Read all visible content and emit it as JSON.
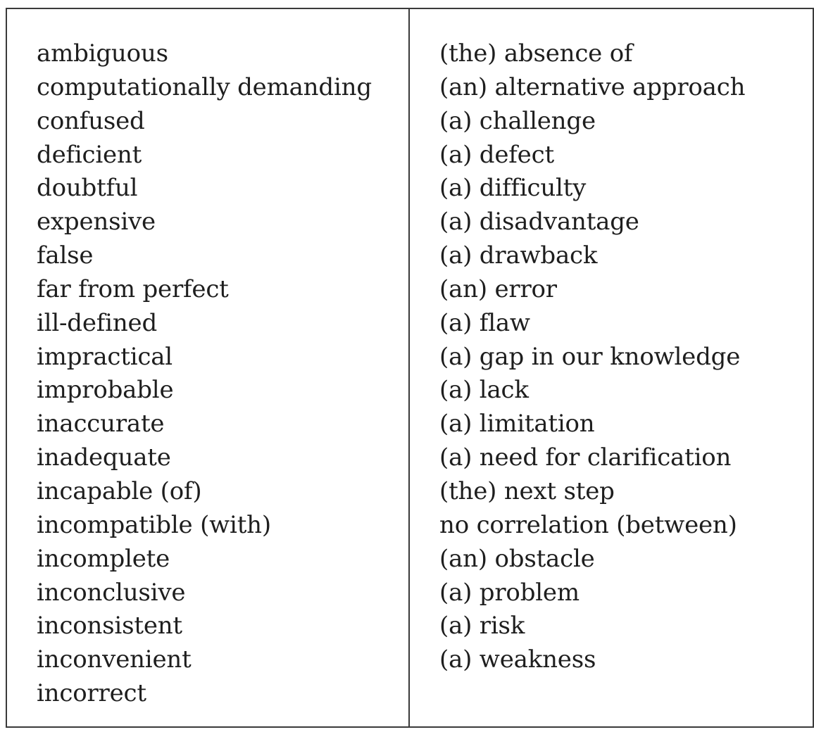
{
  "table": {
    "left_column": [
      "ambiguous",
      "computationally demanding",
      "confused",
      "deficient",
      "doubtful",
      "expensive",
      "false",
      "far from perfect",
      "ill-defined",
      "impractical",
      "improbable",
      "inaccurate",
      "inadequate",
      "incapable (of)",
      "incompatible (with)",
      "incomplete",
      "inconclusive",
      "inconsistent",
      "inconvenient",
      "incorrect"
    ],
    "right_column": [
      "(the) absence of",
      "(an) alternative approach",
      "(a) challenge",
      "(a) defect",
      "(a) difficulty",
      "(a) disadvantage",
      "(a) drawback",
      "(an) error",
      "(a) flaw",
      "(a) gap in our knowledge",
      "(a) lack",
      "(a) limitation",
      "(a) need for clarification",
      "(the) next step",
      "no correlation (between)",
      "(an) obstacle",
      "(a) problem",
      "(a) risk",
      "(a) weakness"
    ]
  }
}
